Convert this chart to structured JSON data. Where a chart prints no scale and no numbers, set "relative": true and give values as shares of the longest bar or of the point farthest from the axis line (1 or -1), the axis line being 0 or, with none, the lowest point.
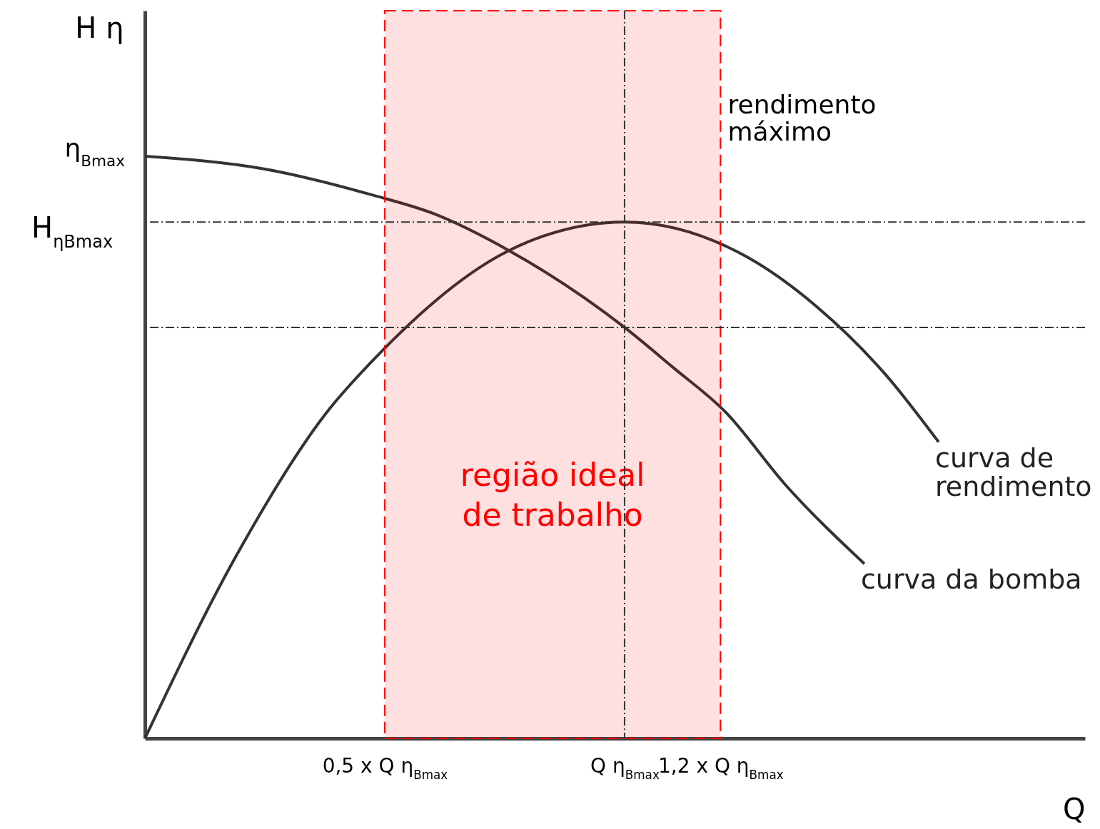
{
  "chart_data": {
    "type": "line",
    "relative": true,
    "xlabel": "Q",
    "ylabel": "H η",
    "xlim": [
      0,
      1.96
    ],
    "xticks": [
      {
        "value": 0.5,
        "label": "0,5 x Q η$_{Bmax}$"
      },
      {
        "value": 1,
        "label": "Q η$_{Bmax}$"
      },
      {
        "value": 1.2,
        "label": "1,2 x Q η$_{Bmax}$"
      }
    ],
    "series": [
      {
        "name": "curva da bomba",
        "color": "#333333",
        "x": [
          0,
          0.25,
          0.476,
          0.6,
          0.759,
          1,
          1.1,
          1.21,
          1.335,
          1.5
        ],
        "values": [
          1,
          0.978,
          0.933,
          0.902,
          0.838,
          0.706,
          0.638,
          0.561,
          0.436,
          0.3
        ]
      },
      {
        "name": "curva de\nrendimento",
        "color": "#333333",
        "x": [
          0,
          0.19,
          0.38,
          0.476,
          0.759,
          1,
          1.253,
          1.4,
          1.543,
          1.655
        ],
        "values": [
          0,
          0.313,
          0.561,
          0.65,
          0.838,
          0.887,
          0.828,
          0.742,
          0.626,
          0.509
        ]
      }
    ],
    "ref_lines": [
      {
        "axis": "y",
        "value": 0.887,
        "color": "#333333",
        "line_style": "dashdot"
      },
      {
        "axis": "y",
        "value": 0.706,
        "color": "#333333",
        "line_style": "dashdot"
      },
      {
        "axis": "x",
        "value": 1,
        "color": "#333333",
        "line_style": "dashdot"
      }
    ],
    "bands": [
      {
        "axis": "x",
        "from": 0.5,
        "to": 1.2,
        "label": "região ideal\nde trabalho",
        "color": "#ff0000"
      }
    ],
    "annotations": [
      "rendimento\nmáximo",
      "η$_{Bmax}$",
      "H$_{ηBmax}$"
    ]
  }
}
